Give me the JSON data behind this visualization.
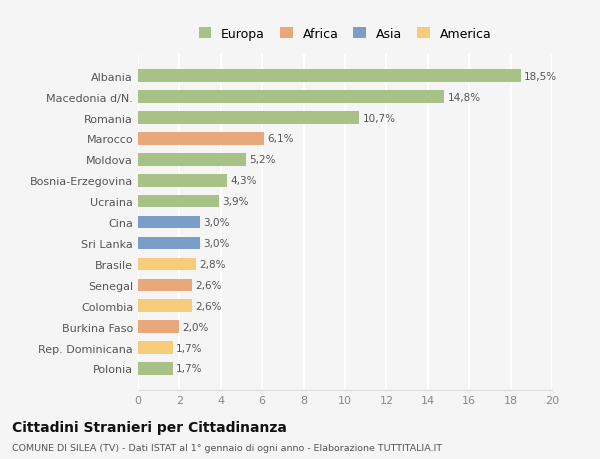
{
  "countries": [
    "Albania",
    "Macedonia d/N.",
    "Romania",
    "Marocco",
    "Moldova",
    "Bosnia-Erzegovina",
    "Ucraina",
    "Cina",
    "Sri Lanka",
    "Brasile",
    "Senegal",
    "Colombia",
    "Burkina Faso",
    "Rep. Dominicana",
    "Polonia"
  ],
  "values": [
    18.5,
    14.8,
    10.7,
    6.1,
    5.2,
    4.3,
    3.9,
    3.0,
    3.0,
    2.8,
    2.6,
    2.6,
    2.0,
    1.7,
    1.7
  ],
  "labels": [
    "18,5%",
    "14,8%",
    "10,7%",
    "6,1%",
    "5,2%",
    "4,3%",
    "3,9%",
    "3,0%",
    "3,0%",
    "2,8%",
    "2,6%",
    "2,6%",
    "2,0%",
    "1,7%",
    "1,7%"
  ],
  "colors": [
    "#a8c187",
    "#a8c187",
    "#a8c187",
    "#e8a87c",
    "#a8c187",
    "#a8c187",
    "#a8c187",
    "#7b9ec9",
    "#7b9ec9",
    "#f5cc7a",
    "#e8a87c",
    "#f5cc7a",
    "#e8a87c",
    "#f5cc7a",
    "#a8c187"
  ],
  "legend_labels": [
    "Europa",
    "Africa",
    "Asia",
    "America"
  ],
  "legend_colors": [
    "#a8c187",
    "#e8a87c",
    "#7b9ec9",
    "#f5cc7a"
  ],
  "xlim": [
    0,
    20
  ],
  "xticks": [
    0,
    2,
    4,
    6,
    8,
    10,
    12,
    14,
    16,
    18,
    20
  ],
  "title": "Cittadini Stranieri per Cittadinanza",
  "subtitle": "COMUNE DI SILEA (TV) - Dati ISTAT al 1° gennaio di ogni anno - Elaborazione TUTTITALIA.IT",
  "bg_color": "#f5f5f5",
  "grid_color": "#ffffff",
  "bar_height": 0.6
}
